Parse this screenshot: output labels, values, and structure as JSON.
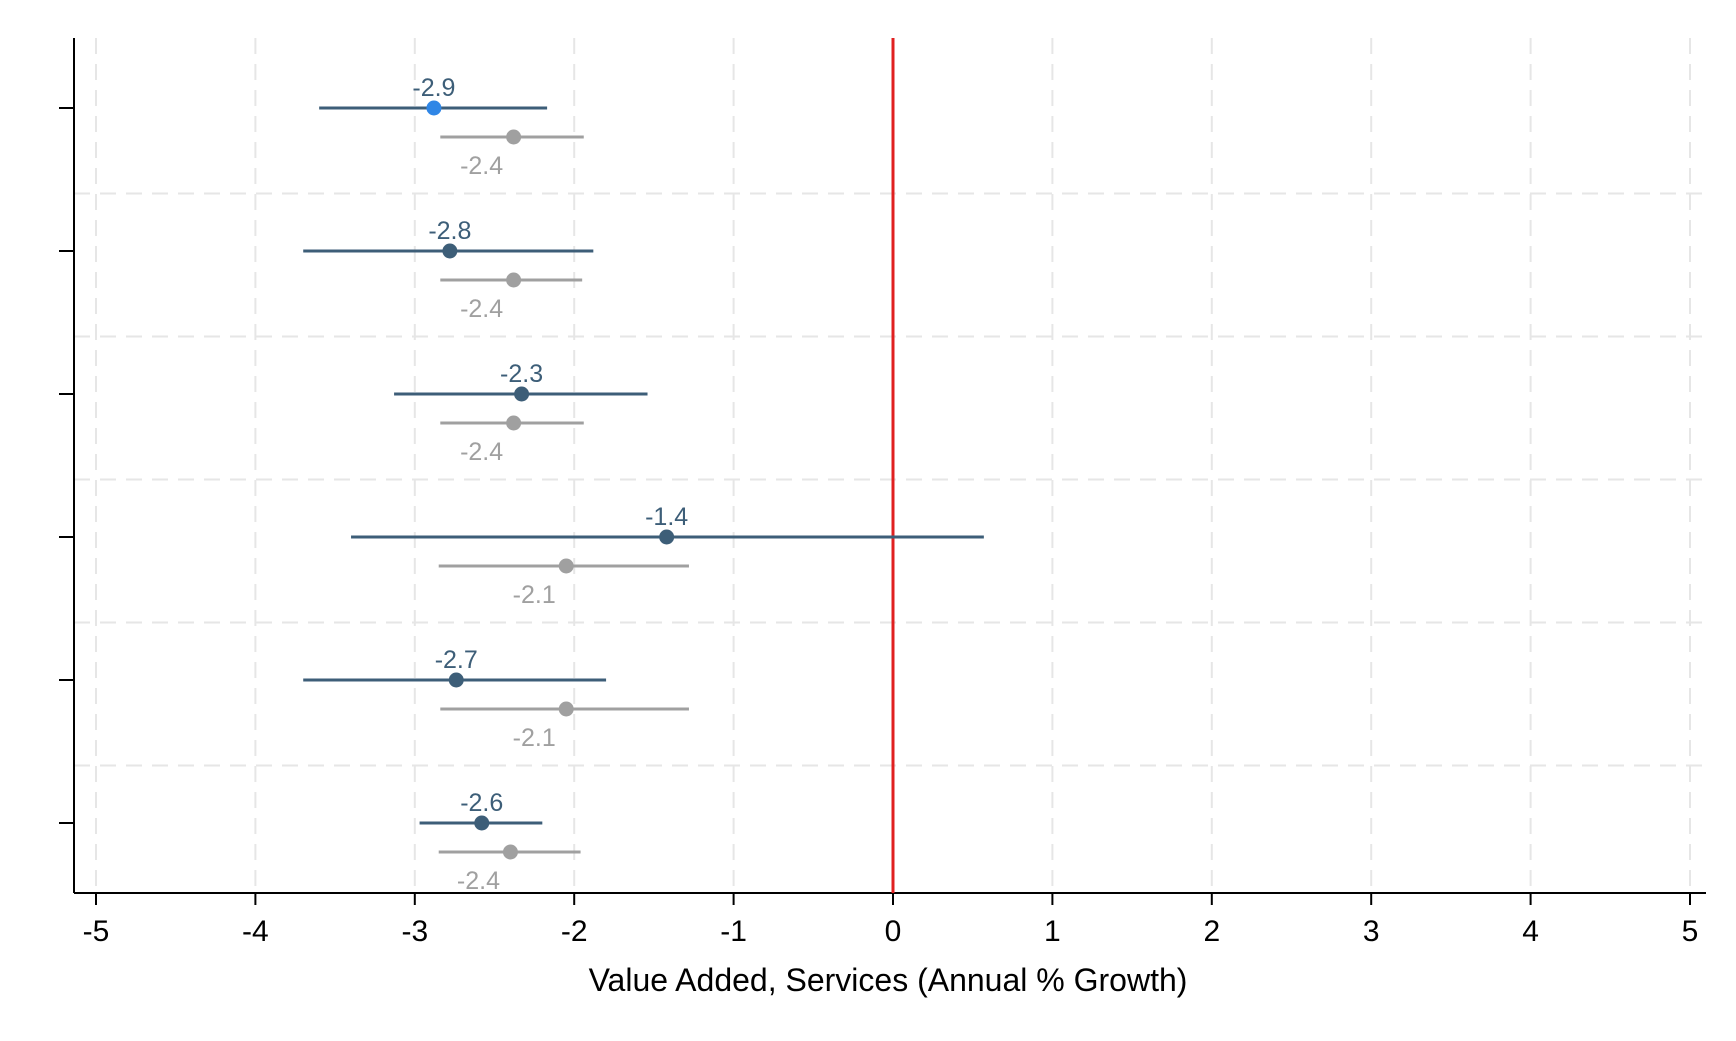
{
  "chart_data": {
    "type": "scatter",
    "subtype": "coefficient-plot",
    "title": "",
    "xlabel": "Value Added, Services (Annual % Growth)",
    "ylabel": "",
    "xlim": [
      -5,
      5
    ],
    "x_ticks": [
      -5,
      -4,
      -3,
      -2,
      -1,
      0,
      1,
      2,
      3,
      4,
      5
    ],
    "grid": true,
    "reference_line": {
      "x": 0,
      "color": "#e02020"
    },
    "colors": {
      "primary": "#3d5e78",
      "highlight": "#2f86e6",
      "secondary": "#a0a0a0"
    },
    "rows": [
      {
        "primary": {
          "estimate": -2.88,
          "ci": [
            -3.6,
            -2.17
          ],
          "label": "-2.9",
          "highlight": true
        },
        "secondary": {
          "estimate": -2.38,
          "ci": [
            -2.84,
            -1.94
          ],
          "label": "-2.4"
        }
      },
      {
        "primary": {
          "estimate": -2.78,
          "ci": [
            -3.7,
            -1.88
          ],
          "label": "-2.8",
          "highlight": false
        },
        "secondary": {
          "estimate": -2.38,
          "ci": [
            -2.84,
            -1.95
          ],
          "label": "-2.4"
        }
      },
      {
        "primary": {
          "estimate": -2.33,
          "ci": [
            -3.13,
            -1.54
          ],
          "label": "-2.3",
          "highlight": false
        },
        "secondary": {
          "estimate": -2.38,
          "ci": [
            -2.84,
            -1.94
          ],
          "label": "-2.4"
        }
      },
      {
        "primary": {
          "estimate": -1.42,
          "ci": [
            -3.4,
            0.57
          ],
          "label": "-1.4",
          "highlight": false
        },
        "secondary": {
          "estimate": -2.05,
          "ci": [
            -2.85,
            -1.28
          ],
          "label": "-2.1"
        }
      },
      {
        "primary": {
          "estimate": -2.74,
          "ci": [
            -3.7,
            -1.8
          ],
          "label": "-2.7",
          "highlight": false
        },
        "secondary": {
          "estimate": -2.05,
          "ci": [
            -2.84,
            -1.28
          ],
          "label": "-2.1"
        }
      },
      {
        "primary": {
          "estimate": -2.58,
          "ci": [
            -2.97,
            -2.2
          ],
          "label": "-2.6",
          "highlight": false
        },
        "secondary": {
          "estimate": -2.4,
          "ci": [
            -2.85,
            -1.96
          ],
          "label": "-2.4"
        }
      }
    ]
  }
}
